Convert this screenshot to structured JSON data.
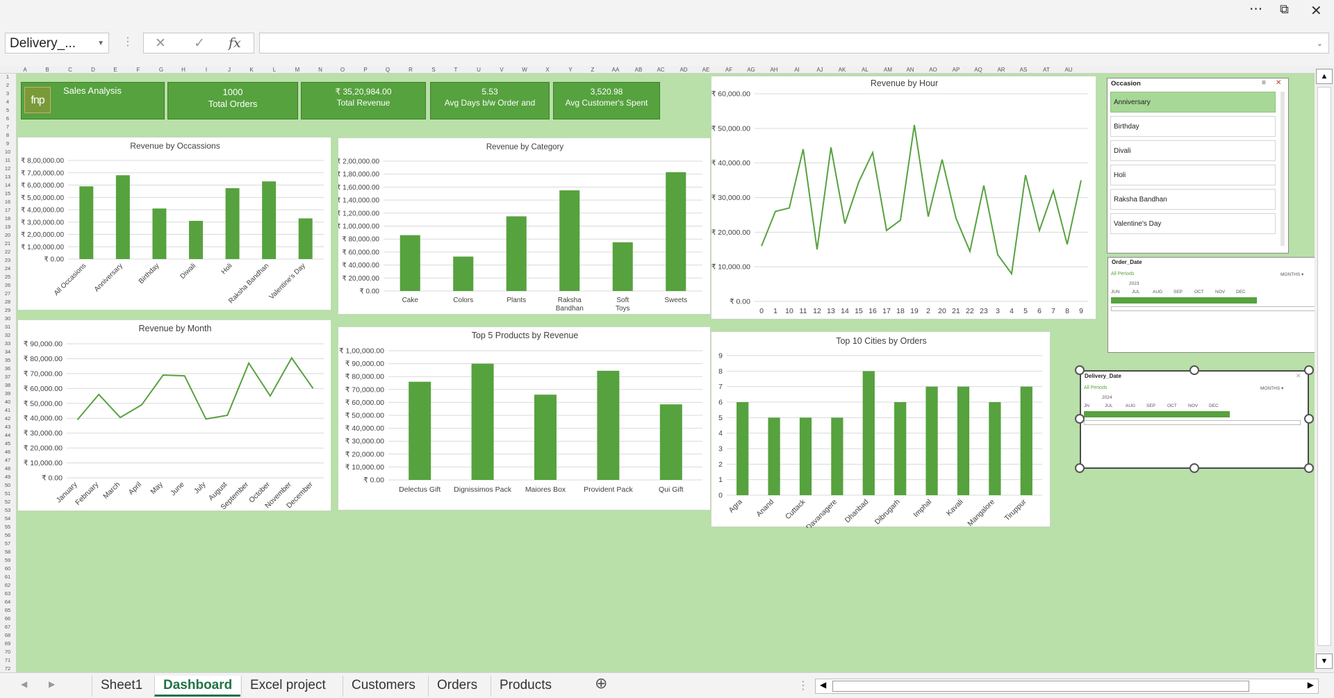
{
  "window": {
    "more_label": "···",
    "restore_label": "⧉",
    "close_label": "✕"
  },
  "formula_bar": {
    "name_box": "Delivery_...",
    "cancel_glyph": "✕",
    "enter_glyph": "✓",
    "fx_glyph": "fx",
    "formula": ""
  },
  "columns": [
    "A",
    "B",
    "C",
    "D",
    "E",
    "F",
    "G",
    "H",
    "I",
    "J",
    "K",
    "L",
    "M",
    "N",
    "O",
    "P",
    "Q",
    "R",
    "S",
    "T",
    "U",
    "V",
    "W",
    "X",
    "Y",
    "Z",
    "AA",
    "AB",
    "AC",
    "AD",
    "AE",
    "AF",
    "AG",
    "AH",
    "AI",
    "AJ",
    "AK",
    "AL",
    "AM",
    "AN",
    "AO",
    "AP",
    "AQ",
    "AR",
    "AS",
    "AT",
    "AU"
  ],
  "rows": [
    "1",
    "2",
    "3",
    "4",
    "5",
    "6",
    "7",
    "8",
    "9",
    "10",
    "11",
    "12",
    "13",
    "14",
    "15",
    "16",
    "17",
    "18",
    "19",
    "20",
    "21",
    "22",
    "23",
    "24",
    "25",
    "26",
    "27",
    "28",
    "29",
    "30",
    "31",
    "32",
    "33",
    "34",
    "35",
    "36",
    "37",
    "38",
    "39",
    "40",
    "41",
    "42",
    "43",
    "44",
    "45",
    "46",
    "47",
    "48",
    "49",
    "50",
    "51",
    "52",
    "53",
    "54",
    "55",
    "56",
    "57",
    "58",
    "59",
    "60",
    "61",
    "62",
    "63",
    "64",
    "65",
    "66",
    "67",
    "68",
    "69",
    "70",
    "71",
    "72"
  ],
  "logo_text": "fnp",
  "kpis": {
    "title": "Sales Analysis",
    "total_orders": {
      "value": "1000",
      "label": "Total Orders"
    },
    "total_revenue": {
      "value": "₹ 35,20,984.00",
      "label": "Total Revenue"
    },
    "avg_days": {
      "value": "5.53",
      "label": "Avg Days b/w Order and"
    },
    "avg_spent": {
      "value": "3,520.98",
      "label": "Avg Customer's Spent"
    }
  },
  "colors": {
    "bar": "#56a23e",
    "sheet_bg": "#b8e0a8",
    "accent": "#217346"
  },
  "chart_data": [
    {
      "id": "occ",
      "type": "bar",
      "title": "Revenue by Occassions",
      "categories": [
        "All Occasions",
        "Anniversary",
        "Birthday",
        "Diwali",
        "Holi",
        "Raksha Bandhan",
        "Valentine's Day"
      ],
      "values": [
        590000,
        680000,
        410000,
        310000,
        575000,
        630000,
        330000
      ],
      "ylim": [
        0,
        800000
      ],
      "yticks": [
        "₹ 0.00",
        "₹ 1,00,000.00",
        "₹ 2,00,000.00",
        "₹ 3,00,000.00",
        "₹ 4,00,000.00",
        "₹ 5,00,000.00",
        "₹ 6,00,000.00",
        "₹ 7,00,000.00",
        "₹ 8,00,000.00"
      ],
      "rotate": true
    },
    {
      "id": "cat",
      "type": "bar",
      "title": "Revenue by Category",
      "categories": [
        "Cake",
        "Colors",
        "Plants",
        "Raksha Bandhan",
        "Soft Toys",
        "Sweets"
      ],
      "values": [
        86000,
        53000,
        115000,
        155000,
        75000,
        183000
      ],
      "ylim": [
        0,
        200000
      ],
      "yticks": [
        "₹ 0.00",
        "₹ 20,000.00",
        "₹ 40,000.00",
        "₹ 60,000.00",
        "₹ 80,000.00",
        "₹ 1,00,000.00",
        "₹ 1,20,000.00",
        "₹ 1,40,000.00",
        "₹ 1,60,000.00",
        "₹ 1,80,000.00",
        "₹ 2,00,000.00"
      ],
      "rotate": false
    },
    {
      "id": "hour",
      "type": "line",
      "title": "Revenue by Hour",
      "categories": [
        "0",
        "1",
        "10",
        "11",
        "12",
        "13",
        "14",
        "15",
        "16",
        "17",
        "18",
        "19",
        "2",
        "20",
        "21",
        "22",
        "23",
        "3",
        "4",
        "5",
        "6",
        "7",
        "8",
        "9"
      ],
      "values": [
        16000,
        26000,
        27000,
        44000,
        15000,
        44500,
        22500,
        34500,
        43000,
        20500,
        23500,
        51000,
        24500,
        41000,
        24000,
        14500,
        33500,
        13500,
        8000,
        36500,
        20500,
        32000,
        16500,
        35000
      ],
      "ylim": [
        0,
        60000
      ],
      "yticks": [
        "₹ 0.00",
        "₹ 10,000.00",
        "₹ 20,000.00",
        "₹ 30,000.00",
        "₹ 40,000.00",
        "₹ 50,000.00",
        "₹ 60,000.00"
      ],
      "rotate": false
    },
    {
      "id": "month",
      "type": "line",
      "title": "Revenue by Month",
      "categories": [
        "January",
        "February",
        "March",
        "April",
        "May",
        "June",
        "July",
        "August",
        "September",
        "October",
        "November",
        "December"
      ],
      "values": [
        39000,
        56000,
        40500,
        49000,
        69000,
        68500,
        39500,
        42000,
        77000,
        55000,
        80500,
        60000
      ],
      "ylim": [
        0,
        90000
      ],
      "yticks": [
        "₹ 0.00",
        "₹ 10,000.00",
        "₹ 20,000.00",
        "₹ 30,000.00",
        "₹ 40,000.00",
        "₹ 50,000.00",
        "₹ 60,000.00",
        "₹ 70,000.00",
        "₹ 80,000.00",
        "₹ 90,000.00"
      ],
      "rotate": true
    },
    {
      "id": "prod",
      "type": "bar",
      "title": "Top 5 Products by Revenue",
      "categories": [
        "Delectus Gift",
        "Dignissimos Pack",
        "Maiores Box",
        "Provident Pack",
        "Qui Gift"
      ],
      "values": [
        76000,
        90000,
        66000,
        84500,
        58500
      ],
      "ylim": [
        0,
        100000
      ],
      "yticks": [
        "₹ 0.00",
        "₹ 10,000.00",
        "₹ 20,000.00",
        "₹ 30,000.00",
        "₹ 40,000.00",
        "₹ 50,000.00",
        "₹ 60,000.00",
        "₹ 70,000.00",
        "₹ 80,000.00",
        "₹ 90,000.00",
        "₹ 1,00,000.00"
      ],
      "rotate": false
    },
    {
      "id": "city",
      "type": "bar",
      "title": "Top 10 Cities by Orders",
      "categories": [
        "Agra",
        "Anand",
        "Cuttack",
        "Davanagere",
        "Dhanbad",
        "Dibrugarh",
        "Imphal",
        "Kavali",
        "Mangalore",
        "Tiruppur"
      ],
      "values": [
        6,
        5,
        5,
        5,
        8,
        6,
        7,
        7,
        6,
        7
      ],
      "ylim": [
        0,
        9
      ],
      "yticks": [
        "0",
        "1",
        "2",
        "3",
        "4",
        "5",
        "6",
        "7",
        "8",
        "9"
      ],
      "rotate": true
    }
  ],
  "slicers": {
    "occasion": {
      "title": "Occasion",
      "items": [
        "Anniversary",
        "Birthday",
        "Divali",
        "Holi",
        "Raksha Bandhan",
        "Valentine's Day"
      ]
    },
    "order_date": {
      "title": "Order_Date",
      "all_periods": "All Periods",
      "unit": "MONTHS ▾",
      "year": "2023",
      "months": [
        "JUN",
        "JUL",
        "AUG",
        "SEP",
        "OCT",
        "NOV",
        "DEC"
      ]
    },
    "delivery_date": {
      "title": "Delivery_Date",
      "all_periods": "All Periods",
      "unit": "MONTHS ▾",
      "year": "2024",
      "months": [
        "JN",
        "JUL",
        "AUG",
        "SEP",
        "OCT",
        "NOV",
        "DEC"
      ]
    }
  },
  "tabs": [
    "Sheet1",
    "Dashboard",
    "Excel project",
    "Customers",
    "Orders",
    "Products"
  ],
  "active_tab": "Dashboard",
  "add_sheet_glyph": "⊕"
}
